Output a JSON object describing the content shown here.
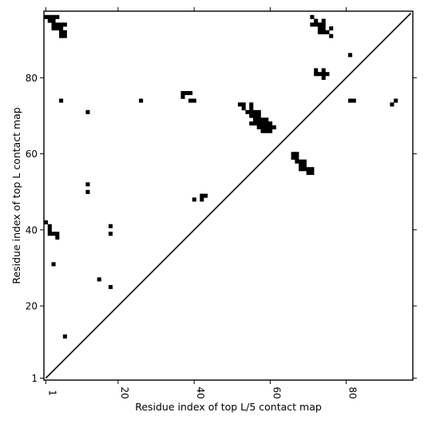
{
  "chart_data": {
    "type": "heatmap",
    "title": "",
    "xlabel": "Residue index of top L/5 contact map",
    "ylabel": "Residue index of top L contact map",
    "xlim": [
      1,
      97
    ],
    "ylim": [
      1,
      97
    ],
    "x_ticks": [
      1,
      20,
      40,
      60,
      80
    ],
    "y_ticks": [
      1,
      20,
      40,
      60,
      80
    ],
    "grid": false,
    "diagonal": {
      "from": [
        1,
        1
      ],
      "to": [
        97,
        97
      ]
    },
    "colors": {
      "contact": "#000000",
      "background": "#ffffff"
    },
    "contacts_upper": [
      [
        1,
        96
      ],
      [
        2,
        96
      ],
      [
        3,
        96
      ],
      [
        4,
        96
      ],
      [
        2,
        95
      ],
      [
        3,
        95
      ],
      [
        3,
        94
      ],
      [
        4,
        94
      ],
      [
        5,
        94
      ],
      [
        6,
        94
      ],
      [
        3,
        93
      ],
      [
        4,
        93
      ],
      [
        5,
        93
      ],
      [
        5,
        92
      ],
      [
        6,
        92
      ],
      [
        5,
        91
      ],
      [
        6,
        91
      ],
      [
        71,
        96
      ],
      [
        72,
        95
      ],
      [
        71,
        94
      ],
      [
        72,
        94
      ],
      [
        73,
        94
      ],
      [
        74,
        94
      ],
      [
        74,
        95
      ],
      [
        73,
        93
      ],
      [
        74,
        93
      ],
      [
        76,
        93
      ],
      [
        73,
        92
      ],
      [
        74,
        92
      ],
      [
        75,
        92
      ],
      [
        76,
        91
      ],
      [
        81,
        86
      ],
      [
        72,
        82
      ],
      [
        74,
        82
      ],
      [
        72,
        81
      ],
      [
        73,
        81
      ],
      [
        74,
        81
      ],
      [
        75,
        81
      ],
      [
        74,
        80
      ],
      [
        37,
        76
      ],
      [
        38,
        76
      ],
      [
        39,
        76
      ],
      [
        37,
        75
      ],
      [
        39,
        74
      ],
      [
        40,
        74
      ],
      [
        26,
        74
      ],
      [
        81,
        74
      ],
      [
        82,
        74
      ],
      [
        93,
        74
      ],
      [
        92,
        73
      ],
      [
        52,
        73
      ],
      [
        53,
        73
      ],
      [
        55,
        73
      ],
      [
        53,
        72
      ],
      [
        55,
        72
      ],
      [
        54,
        71
      ],
      [
        55,
        71
      ],
      [
        56,
        71
      ],
      [
        57,
        71
      ],
      [
        55,
        70
      ],
      [
        56,
        70
      ],
      [
        57,
        70
      ],
      [
        56,
        69
      ],
      [
        57,
        69
      ],
      [
        58,
        69
      ],
      [
        59,
        69
      ],
      [
        55,
        68
      ],
      [
        56,
        68
      ],
      [
        57,
        68
      ],
      [
        58,
        68
      ],
      [
        59,
        68
      ],
      [
        60,
        68
      ],
      [
        57,
        67
      ],
      [
        58,
        67
      ],
      [
        59,
        67
      ],
      [
        60,
        67
      ],
      [
        61,
        67
      ],
      [
        58,
        66
      ],
      [
        59,
        66
      ],
      [
        60,
        66
      ],
      [
        66,
        60
      ],
      [
        67,
        60
      ],
      [
        66,
        59
      ],
      [
        67,
        59
      ],
      [
        67,
        58
      ],
      [
        68,
        58
      ],
      [
        69,
        58
      ],
      [
        68,
        57
      ],
      [
        69,
        57
      ],
      [
        68,
        56
      ],
      [
        69,
        56
      ],
      [
        70,
        56
      ],
      [
        71,
        56
      ],
      [
        70,
        55
      ],
      [
        71,
        55
      ],
      [
        42,
        49
      ],
      [
        43,
        49
      ],
      [
        42,
        48
      ],
      [
        40,
        48
      ],
      [
        5,
        74
      ],
      [
        12,
        71
      ]
    ],
    "contacts_lower": [
      [
        1,
        42
      ],
      [
        2,
        41
      ],
      [
        2,
        40
      ],
      [
        2,
        39
      ],
      [
        3,
        39
      ],
      [
        4,
        39
      ],
      [
        4,
        38
      ],
      [
        3,
        31
      ],
      [
        12,
        52
      ],
      [
        12,
        50
      ],
      [
        18,
        41
      ],
      [
        18,
        39
      ],
      [
        15,
        27
      ],
      [
        18,
        25
      ],
      [
        6,
        12
      ]
    ]
  }
}
